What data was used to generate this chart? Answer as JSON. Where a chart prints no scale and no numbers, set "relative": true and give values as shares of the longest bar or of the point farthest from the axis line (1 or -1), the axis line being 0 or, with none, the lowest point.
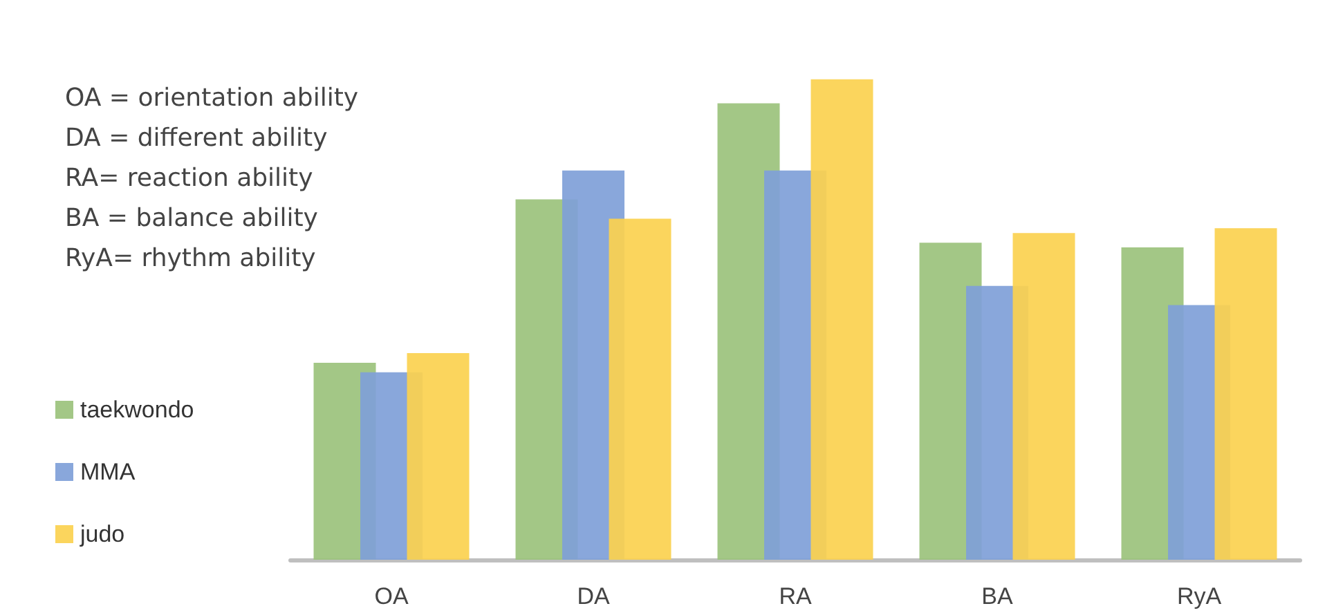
{
  "chart_data": {
    "type": "bar",
    "relative": true,
    "categories": [
      "OA",
      "DA",
      "RA",
      "BA",
      "RyA"
    ],
    "series": [
      {
        "name": "taekwondo",
        "color": "#9bc27c",
        "values": [
          0.41,
          0.75,
          0.95,
          0.66,
          0.65
        ]
      },
      {
        "name": "MMA",
        "color": "#7f9fd8",
        "values": [
          0.39,
          0.81,
          0.81,
          0.57,
          0.53
        ]
      },
      {
        "name": "judo",
        "color": "#fbd14f",
        "values": [
          0.43,
          0.71,
          1,
          0.68,
          0.69
        ]
      }
    ],
    "annotations": [
      "OA = orientation ability",
      "DA = different ability",
      "RA= reaction ability",
      "BA = balance ability",
      "RyA= rhythm ability"
    ],
    "legend": "left"
  }
}
